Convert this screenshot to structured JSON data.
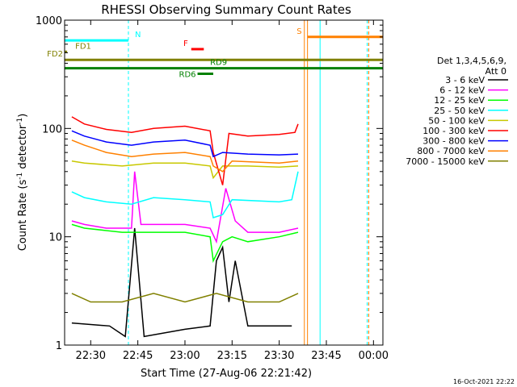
{
  "chart_data": {
    "type": "line",
    "title": "RHESSI Observing Summary Count Rates",
    "xlabel": "Start Time (27-Aug-06 22:21:42)",
    "ylabel_main": "Count Rate (s",
    "ylabel_sup1": "-1",
    "ylabel_mid": " detector",
    "ylabel_sup2": "-1",
    "ylabel_end": ")",
    "y_scale": "log",
    "ylim": [
      1,
      1000
    ],
    "xlim": [
      "22:21:42",
      "00:03:00"
    ],
    "x_ticks": [
      {
        "t": "22:30",
        "label": "22:30"
      },
      {
        "t": "22:45",
        "label": "22:45"
      },
      {
        "t": "23:00",
        "label": "23:00"
      },
      {
        "t": "23:15",
        "label": "23:15"
      },
      {
        "t": "23:30",
        "label": "23:30"
      },
      {
        "t": "23:45",
        "label": "23:45"
      },
      {
        "t": "00:00",
        "label": "00:00"
      }
    ],
    "y_ticks": [
      {
        "v": 1,
        "label": "1"
      },
      {
        "v": 10,
        "label": "10"
      },
      {
        "v": 100,
        "label": "100"
      },
      {
        "v": 1000,
        "label": "1000"
      }
    ],
    "legend_position": "right",
    "legend_title": [
      "Det 1,3,4,5,6,9,",
      "Att 0"
    ],
    "series": [
      {
        "name": "3 - 6 keV",
        "color": "#000000",
        "points": [
          [
            "22:24",
            1.6
          ],
          [
            "22:36",
            1.5
          ],
          [
            "22:41",
            1.2
          ],
          [
            "22:44",
            12
          ],
          [
            "22:47",
            1.2
          ],
          [
            "23:00",
            1.4
          ],
          [
            "23:08",
            1.5
          ],
          [
            "23:10",
            6
          ],
          [
            "23:12",
            8
          ],
          [
            "23:14",
            2.5
          ],
          [
            "23:16",
            6
          ],
          [
            "23:20",
            1.5
          ],
          [
            "23:34",
            1.5
          ]
        ]
      },
      {
        "name": "6 - 12 keV",
        "color": "#ff00ff",
        "points": [
          [
            "22:24",
            14
          ],
          [
            "22:28",
            13
          ],
          [
            "22:35",
            12
          ],
          [
            "22:43",
            12
          ],
          [
            "22:44",
            40
          ],
          [
            "22:46",
            13
          ],
          [
            "23:00",
            13
          ],
          [
            "23:08",
            12
          ],
          [
            "23:10",
            9
          ],
          [
            "23:13",
            28
          ],
          [
            "23:16",
            14
          ],
          [
            "23:20",
            11
          ],
          [
            "23:30",
            11
          ],
          [
            "23:36",
            12
          ]
        ]
      },
      {
        "name": "12 - 25 keV",
        "color": "#00ff00",
        "points": [
          [
            "22:24",
            13
          ],
          [
            "22:28",
            12
          ],
          [
            "22:40",
            11
          ],
          [
            "22:50",
            11
          ],
          [
            "23:00",
            11
          ],
          [
            "23:08",
            10
          ],
          [
            "23:09",
            6
          ],
          [
            "23:12",
            9
          ],
          [
            "23:15",
            10
          ],
          [
            "23:20",
            9
          ],
          [
            "23:30",
            10
          ],
          [
            "23:36",
            11
          ]
        ]
      },
      {
        "name": "25 - 50 keV",
        "color": "#00ffff",
        "points": [
          [
            "22:24",
            26
          ],
          [
            "22:28",
            23
          ],
          [
            "22:35",
            21
          ],
          [
            "22:43",
            20
          ],
          [
            "22:50",
            23
          ],
          [
            "23:00",
            22
          ],
          [
            "23:08",
            21
          ],
          [
            "23:09",
            15
          ],
          [
            "23:12",
            16
          ],
          [
            "23:15",
            22
          ],
          [
            "23:30",
            21
          ],
          [
            "23:34",
            22
          ],
          [
            "23:36",
            40
          ]
        ]
      },
      {
        "name": "50 - 100 keV",
        "color": "#c8c800",
        "points": [
          [
            "22:24",
            50
          ],
          [
            "22:28",
            48
          ],
          [
            "22:40",
            45
          ],
          [
            "22:50",
            48
          ],
          [
            "23:00",
            48
          ],
          [
            "23:08",
            45
          ],
          [
            "23:09",
            35
          ],
          [
            "23:12",
            45
          ],
          [
            "23:20",
            45
          ],
          [
            "23:30",
            44
          ],
          [
            "23:36",
            45
          ]
        ]
      },
      {
        "name": "100 - 300 keV",
        "color": "#ff0000",
        "points": [
          [
            "22:24",
            128
          ],
          [
            "22:28",
            110
          ],
          [
            "22:35",
            98
          ],
          [
            "22:43",
            92
          ],
          [
            "22:50",
            100
          ],
          [
            "23:00",
            105
          ],
          [
            "23:08",
            95
          ],
          [
            "23:09",
            60
          ],
          [
            "23:12",
            30
          ],
          [
            "23:14",
            90
          ],
          [
            "23:20",
            85
          ],
          [
            "23:30",
            88
          ],
          [
            "23:35",
            92
          ],
          [
            "23:36",
            110
          ]
        ]
      },
      {
        "name": "300 - 800 keV",
        "color": "#0000ff",
        "points": [
          [
            "22:24",
            95
          ],
          [
            "22:28",
            85
          ],
          [
            "22:35",
            75
          ],
          [
            "22:43",
            70
          ],
          [
            "22:50",
            75
          ],
          [
            "23:00",
            78
          ],
          [
            "23:08",
            70
          ],
          [
            "23:09",
            55
          ],
          [
            "23:12",
            60
          ],
          [
            "23:20",
            58
          ],
          [
            "23:30",
            57
          ],
          [
            "23:36",
            58
          ]
        ]
      },
      {
        "name": "800 - 7000 keV",
        "color": "#ff8000",
        "points": [
          [
            "22:24",
            78
          ],
          [
            "22:28",
            70
          ],
          [
            "22:35",
            60
          ],
          [
            "22:43",
            55
          ],
          [
            "22:50",
            58
          ],
          [
            "23:00",
            60
          ],
          [
            "23:08",
            55
          ],
          [
            "23:09",
            45
          ],
          [
            "23:12",
            40
          ],
          [
            "23:15",
            50
          ],
          [
            "23:30",
            48
          ],
          [
            "23:36",
            50
          ]
        ]
      },
      {
        "name": "7000 - 15000 keV",
        "color": "#808000",
        "points": [
          [
            "22:24",
            3
          ],
          [
            "22:30",
            2.5
          ],
          [
            "22:40",
            2.5
          ],
          [
            "22:50",
            3
          ],
          [
            "23:00",
            2.5
          ],
          [
            "23:10",
            3
          ],
          [
            "23:20",
            2.5
          ],
          [
            "23:30",
            2.5
          ],
          [
            "23:36",
            3
          ]
        ]
      }
    ],
    "flag_bars": [
      {
        "label": "N",
        "color": "#00ffff",
        "start": "22:21:42",
        "end": "22:42",
        "y": 650
      },
      {
        "label": "S",
        "color": "#ff8000",
        "start": "23:39",
        "end": "00:03",
        "y": 700
      },
      {
        "label": "F",
        "color": "#ff0000",
        "start": "23:02",
        "end": "23:06",
        "y": 540
      },
      {
        "label": "FD1",
        "color": "#808000",
        "start": "22:21:42",
        "end": "22:22:30",
        "y": 510
      },
      {
        "label": "FD2",
        "color": "#808000",
        "start": "22:21:42",
        "end": "00:03",
        "y": 430
      },
      {
        "label": "RD9",
        "color": "#008000",
        "start": "22:21:42",
        "end": "00:03",
        "y": 360
      },
      {
        "label": "RD6",
        "color": "#008000",
        "start": "23:04",
        "end": "23:09",
        "y": 320
      }
    ],
    "boundaries": [
      {
        "t": "22:21:42",
        "color": "#00ffff",
        "style": "solid"
      },
      {
        "t": "22:42",
        "color": "#00ffff",
        "style": "dashed"
      },
      {
        "t": "23:38",
        "color": "#ff8000",
        "style": "solid"
      },
      {
        "t": "23:39",
        "color": "#ff8000",
        "style": "solid"
      },
      {
        "t": "23:43",
        "color": "#00ffff",
        "style": "solid"
      },
      {
        "t": "23:58",
        "color": "#00ffff",
        "style": "dashed"
      },
      {
        "t": "23:58:30",
        "color": "#ff8000",
        "style": "dashed"
      }
    ]
  },
  "footer": {
    "date_stamp": "16-Oct-2021 22:22"
  }
}
